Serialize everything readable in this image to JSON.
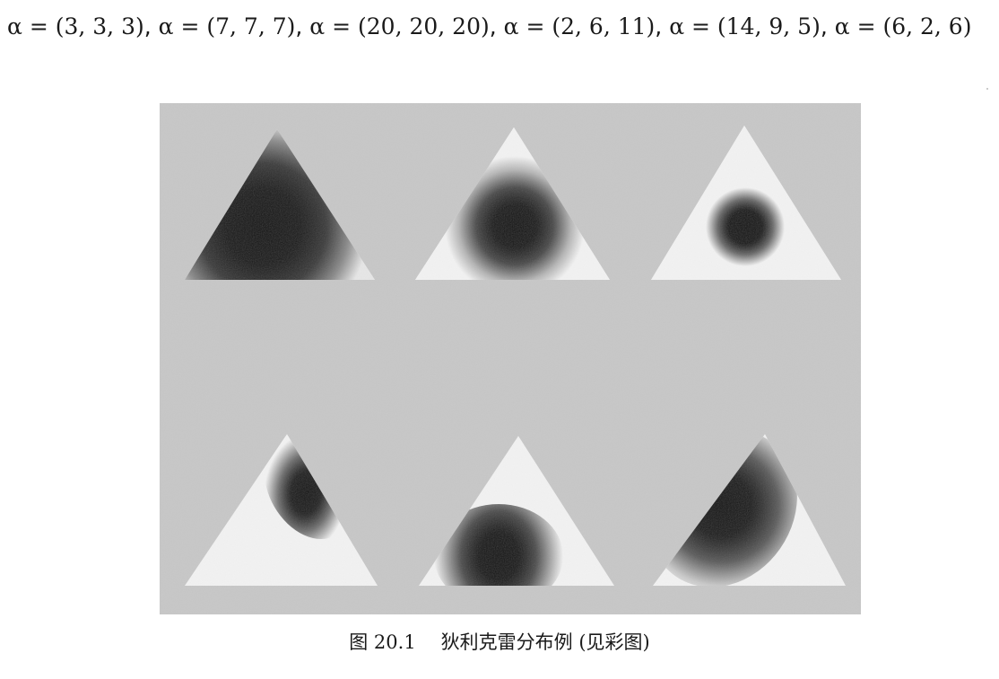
{
  "header": {
    "alpha_params": [
      "α = (3, 3, 3)",
      "α = (7, 7, 7)",
      "α = (20, 20, 20)",
      "α = (2, 6, 11)",
      "α = (14, 9, 5)",
      "α = (6, 2, 6)"
    ],
    "separator": ", "
  },
  "figure": {
    "panels": [
      {
        "alpha": [
          3,
          3,
          3
        ],
        "row": 0,
        "col": 0,
        "blob": "large"
      },
      {
        "alpha": [
          7,
          7,
          7
        ],
        "row": 0,
        "col": 1,
        "blob": "medium"
      },
      {
        "alpha": [
          20,
          20,
          20
        ],
        "row": 0,
        "col": 2,
        "blob": "small"
      },
      {
        "alpha": [
          2,
          6,
          11
        ],
        "row": 1,
        "col": 0,
        "blob": "upper-right-edge"
      },
      {
        "alpha": [
          14,
          9,
          5
        ],
        "row": 1,
        "col": 1,
        "blob": "lower-center"
      },
      {
        "alpha": [
          6,
          2,
          6
        ],
        "row": 1,
        "col": 2,
        "blob": "left-edge"
      }
    ],
    "colors": {
      "background": "#c7c7c7",
      "triangle_fill": "#f2f2f2",
      "density_dark": "#0a0a0a"
    }
  },
  "caption": {
    "label": "图 20.1",
    "text": "狄利克雷分布例 (见彩图)"
  }
}
